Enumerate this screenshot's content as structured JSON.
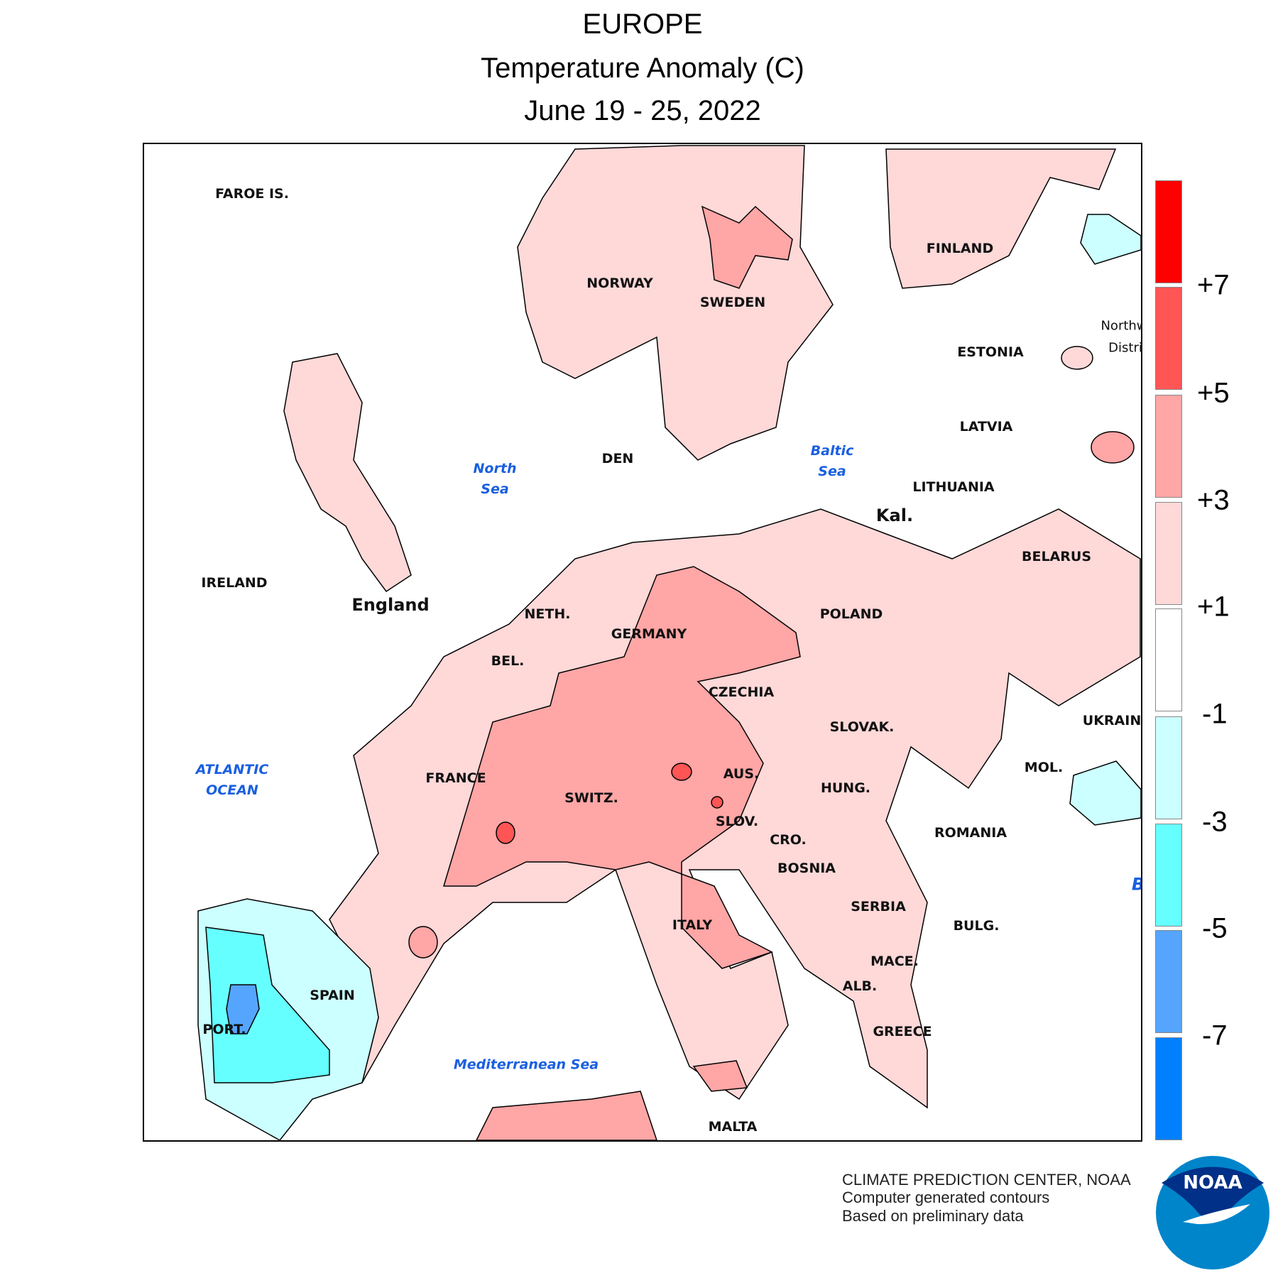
{
  "header": {
    "region": "EUROPE",
    "title": "Temperature Anomaly (C)",
    "period": "June 19 - 25, 2022"
  },
  "colors": {
    "plus7_up": "#ff0000",
    "plus5_7": "#ff5555",
    "plus3_5": "#ffa6a6",
    "plus1_3": "#ffd8d8",
    "minus1_plus1": "#ffffff",
    "minus3_minus1": "#ccffff",
    "minus5_minus3": "#66ffff",
    "minus7_minus5": "#55a5ff",
    "below_minus7": "#0080ff"
  },
  "legend": {
    "labels": [
      "+7",
      "+5",
      "+3",
      "+1",
      "-1",
      "-3",
      "-5",
      "-7"
    ]
  },
  "countries": [
    "FAROE IS.",
    "NORWAY",
    "SWEDEN",
    "FINLAND",
    "ESTONIA",
    "LATVIA",
    "LITHUANIA",
    "Kal.",
    "BELARUS",
    "POLAND",
    "GERMANY",
    "NETH.",
    "BEL.",
    "DEN",
    "IRELAND",
    "England",
    "CZECHIA",
    "SLOVAK.",
    "UKRAIN",
    "MOL.",
    "FRANCE",
    "SWITZ.",
    "AUS.",
    "HUNG.",
    "ROMANIA",
    "SLOV.",
    "CRO.",
    "BOSNIA",
    "SERBIA",
    "BULG.",
    "MACE.",
    "ALB.",
    "GREECE",
    "ITALY",
    "SPAIN",
    "PORT.",
    "MALTA",
    "Northw",
    "Distri"
  ],
  "seas": {
    "north": [
      "North",
      "Sea"
    ],
    "baltic": [
      "Baltic",
      "Sea"
    ],
    "atlantic": [
      "ATLANTIC",
      "OCEAN"
    ],
    "med": "Mediterranean Sea",
    "black": "B"
  },
  "footer": {
    "line1": "CLIMATE PREDICTION CENTER, NOAA",
    "line2": "Computer generated contours",
    "line3": "Based on preliminary data"
  },
  "logo": {
    "text": "NOAA"
  }
}
